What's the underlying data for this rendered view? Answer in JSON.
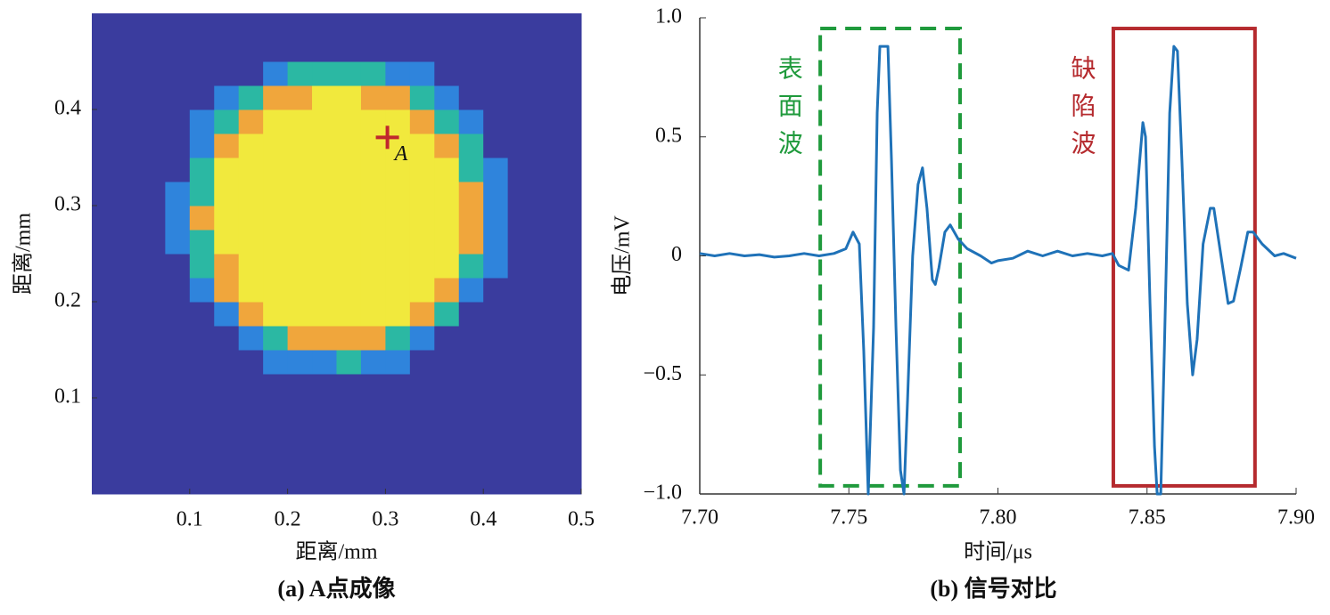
{
  "chart_data": [
    {
      "type": "heatmap",
      "caption": "(a) A点成像",
      "xlabel": "距离/mm",
      "ylabel": "距离/mm",
      "xlim": [
        0,
        0.5
      ],
      "ylim": [
        0,
        0.5
      ],
      "xticks": [
        0.1,
        0.2,
        0.3,
        0.4,
        0.5
      ],
      "yticks": [
        0.1,
        0.2,
        0.3,
        0.4
      ],
      "colorscale": [
        [
          0,
          "#3a3c9e"
        ],
        [
          0.2,
          "#2f84dc"
        ],
        [
          0.5,
          "#2bb8a3"
        ],
        [
          0.8,
          "#f0a63c"
        ],
        [
          1,
          "#f1e93d"
        ]
      ],
      "x": [
        0.0125,
        0.0375,
        0.0625,
        0.0875,
        0.1125,
        0.1375,
        0.1625,
        0.1875,
        0.2125,
        0.2375,
        0.2625,
        0.2875,
        0.3125,
        0.3375,
        0.3625,
        0.3875,
        0.4125,
        0.4375,
        0.4625,
        0.4875
      ],
      "y": [
        0.0125,
        0.0375,
        0.0625,
        0.0875,
        0.1125,
        0.1375,
        0.1625,
        0.1875,
        0.2125,
        0.2375,
        0.2625,
        0.2875,
        0.3125,
        0.3375,
        0.3625,
        0.3875,
        0.4125,
        0.4375,
        0.4625,
        0.4875
      ],
      "z": [
        [
          0,
          0,
          0,
          0,
          0,
          0,
          0,
          0,
          0,
          0,
          0,
          0,
          0,
          0,
          0,
          0,
          0,
          0,
          0,
          0
        ],
        [
          0,
          0,
          0,
          0,
          0,
          0,
          0,
          0,
          0,
          0,
          0,
          0,
          0,
          0,
          0,
          0,
          0,
          0,
          0,
          0
        ],
        [
          0,
          0,
          0,
          0,
          0,
          0,
          0,
          0,
          0,
          0,
          0,
          0,
          0,
          0,
          0,
          0,
          0,
          0,
          0,
          0
        ],
        [
          0,
          0,
          0,
          0,
          0,
          0,
          0,
          0,
          0,
          0,
          0,
          0,
          0,
          0,
          0,
          0,
          0,
          0,
          0,
          0
        ],
        [
          0,
          0,
          0,
          0,
          0,
          0,
          0,
          0,
          0,
          0,
          0,
          0,
          0,
          0,
          0,
          0,
          0,
          0,
          0,
          0
        ],
        [
          0,
          0,
          0,
          0,
          0,
          0,
          0,
          0.2,
          0.2,
          0.2,
          0.5,
          0.2,
          0.2,
          0,
          0,
          0,
          0,
          0,
          0,
          0
        ],
        [
          0,
          0,
          0,
          0,
          0,
          0,
          0.2,
          0.5,
          0.8,
          0.8,
          0.8,
          0.8,
          0.5,
          0.2,
          0,
          0,
          0,
          0,
          0,
          0
        ],
        [
          0,
          0,
          0,
          0,
          0,
          0.2,
          0.8,
          1,
          1,
          1,
          1,
          1,
          1,
          0.8,
          0.5,
          0,
          0,
          0,
          0,
          0
        ],
        [
          0,
          0,
          0,
          0,
          0.2,
          0.8,
          1,
          1,
          1,
          1,
          1,
          1,
          1,
          1,
          0.8,
          0.2,
          0,
          0,
          0,
          0
        ],
        [
          0,
          0,
          0,
          0,
          0.5,
          0.8,
          1,
          1,
          1,
          1,
          1,
          1,
          1,
          1,
          1,
          0.5,
          0.2,
          0,
          0,
          0
        ],
        [
          0,
          0,
          0,
          0.2,
          0.5,
          1,
          1,
          1,
          1,
          1,
          1,
          1,
          1,
          1,
          1,
          0.8,
          0.2,
          0,
          0,
          0
        ],
        [
          0,
          0,
          0,
          0.2,
          0.8,
          1,
          1,
          1,
          1,
          1,
          1,
          1,
          1,
          1,
          1,
          0.8,
          0.2,
          0,
          0,
          0
        ],
        [
          0,
          0,
          0,
          0.2,
          0.5,
          1,
          1,
          1,
          1,
          1,
          1,
          1,
          1,
          1,
          1,
          0.8,
          0.2,
          0,
          0,
          0
        ],
        [
          0,
          0,
          0,
          0,
          0.5,
          1,
          1,
          1,
          1,
          1,
          1,
          1,
          1,
          1,
          1,
          0.5,
          0.2,
          0,
          0,
          0
        ],
        [
          0,
          0,
          0,
          0,
          0.2,
          0.8,
          1,
          1,
          1,
          1,
          1,
          1,
          1,
          1,
          0.8,
          0.5,
          0,
          0,
          0,
          0
        ],
        [
          0,
          0,
          0,
          0,
          0.2,
          0.5,
          0.8,
          1,
          1,
          1,
          1,
          1,
          1,
          0.8,
          0.5,
          0.2,
          0,
          0,
          0,
          0
        ],
        [
          0,
          0,
          0,
          0,
          0,
          0.2,
          0.5,
          0.8,
          0.8,
          1,
          1,
          0.8,
          0.8,
          0.5,
          0.2,
          0,
          0,
          0,
          0,
          0
        ],
        [
          0,
          0,
          0,
          0,
          0,
          0,
          0,
          0.2,
          0.5,
          0.5,
          0.5,
          0.5,
          0.2,
          0.2,
          0,
          0,
          0,
          0,
          0,
          0
        ],
        [
          0,
          0,
          0,
          0,
          0,
          0,
          0,
          0,
          0,
          0,
          0,
          0,
          0,
          0,
          0,
          0,
          0,
          0,
          0,
          0
        ],
        [
          0,
          0,
          0,
          0,
          0,
          0,
          0,
          0,
          0,
          0,
          0,
          0,
          0,
          0,
          0,
          0,
          0,
          0,
          0,
          0
        ]
      ],
      "annotations": [
        {
          "text": "A",
          "x": 0.302,
          "y": 0.371,
          "color": "#c0282d"
        }
      ]
    },
    {
      "type": "line",
      "caption": "(b) 信号对比",
      "xlabel": "时间/μs",
      "ylabel": "电压/mV",
      "xlim": [
        7.7,
        7.9
      ],
      "ylim": [
        -1,
        1
      ],
      "xticks": [
        {
          "value": 7.7,
          "label": "7.70"
        },
        7.75,
        {
          "value": 7.8,
          "label": "7.80"
        },
        7.85,
        {
          "value": 7.9,
          "label": "7.90"
        }
      ],
      "yticks": [
        {
          "value": -1,
          "label": "−1.0"
        },
        {
          "value": -0.5,
          "label": "−0.5"
        },
        0,
        0.5,
        {
          "value": 1,
          "label": "1.0"
        }
      ],
      "color": "#1f72b8",
      "x": [
        7.7,
        7.705,
        7.71,
        7.715,
        7.72,
        7.725,
        7.73,
        7.735,
        7.74,
        7.745,
        7.749,
        7.7514,
        7.7535,
        7.755,
        7.7565,
        7.7583,
        7.7595,
        7.7604,
        7.7631,
        7.7643,
        7.7658,
        7.7673,
        7.7685,
        7.7697,
        7.7714,
        7.7732,
        7.7747,
        7.7762,
        7.778,
        7.779,
        7.7802,
        7.7822,
        7.784,
        7.7867,
        7.7897,
        7.7942,
        7.7978,
        7.8,
        7.805,
        7.81,
        7.815,
        7.82,
        7.825,
        7.83,
        7.835,
        7.8384,
        7.8405,
        7.8438,
        7.8462,
        7.8486,
        7.8495,
        7.851,
        7.8525,
        7.8534,
        7.8546,
        7.8558,
        7.8576,
        7.859,
        7.8602,
        7.8617,
        7.8635,
        7.8653,
        7.8668,
        7.8688,
        7.8712,
        7.8724,
        7.8748,
        7.8772,
        7.879,
        7.8814,
        7.8838,
        7.8856,
        7.8886,
        7.8928,
        7.8958,
        7.9
      ],
      "values": [
        0.01,
        0.0,
        0.01,
        0.0,
        0.005,
        -0.005,
        0.0,
        0.01,
        0.0,
        0.01,
        0.03,
        0.1,
        0.05,
        -0.4,
        -1.0,
        -0.3,
        0.6,
        0.88,
        0.88,
        0.4,
        -0.3,
        -0.9,
        -1.0,
        -0.6,
        0.0,
        0.3,
        0.37,
        0.2,
        -0.1,
        -0.12,
        -0.05,
        0.1,
        0.13,
        0.07,
        0.03,
        0.0,
        -0.03,
        -0.02,
        -0.01,
        0.02,
        0.0,
        0.02,
        0.0,
        0.01,
        0.0,
        0.01,
        -0.04,
        -0.06,
        0.2,
        0.56,
        0.5,
        -0.2,
        -0.8,
        -1.0,
        -1.0,
        -0.4,
        0.6,
        0.88,
        0.86,
        0.4,
        -0.2,
        -0.5,
        -0.35,
        0.05,
        0.2,
        0.2,
        0.0,
        -0.2,
        -0.19,
        -0.05,
        0.1,
        0.1,
        0.05,
        0.0,
        0.01,
        -0.01
      ],
      "boxes": [
        {
          "text": "表面波",
          "color": "#1f9a3c",
          "dashed": true,
          "xlim": [
            7.7404,
            7.7873
          ],
          "ylim": [
            -0.966,
            0.955
          ]
        },
        {
          "text": "缺陷波",
          "color": "#b52a2e",
          "dashed": false,
          "xlim": [
            7.8387,
            7.8862
          ],
          "ylim": [
            -0.966,
            0.955
          ]
        }
      ]
    }
  ]
}
